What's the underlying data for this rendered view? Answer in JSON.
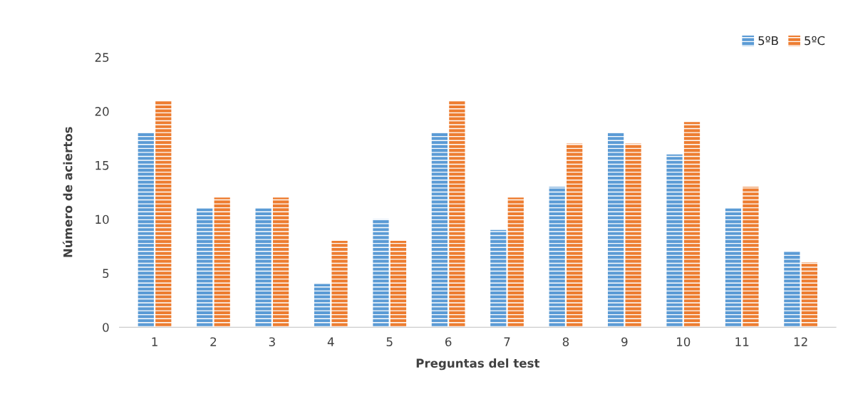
{
  "chart_data": {
    "type": "bar",
    "xlabel": "Preguntas del test",
    "ylabel": "Número de aciertos",
    "categories": [
      "1",
      "2",
      "3",
      "4",
      "5",
      "6",
      "7",
      "8",
      "9",
      "10",
      "11",
      "12"
    ],
    "series": [
      {
        "name": "5ºB",
        "color": "#5b9bd5",
        "values": [
          18,
          11,
          11,
          4,
          10,
          18,
          9,
          13,
          18,
          16,
          11,
          7
        ]
      },
      {
        "name": "5ºC",
        "color": "#ed7d31",
        "values": [
          21,
          12,
          12,
          8,
          8,
          21,
          12,
          17,
          17,
          19,
          13,
          6
        ]
      }
    ],
    "ylim": [
      0,
      25
    ],
    "yticks": [
      0,
      5,
      10,
      15,
      20,
      25
    ],
    "grid": false,
    "legend": "top right"
  }
}
